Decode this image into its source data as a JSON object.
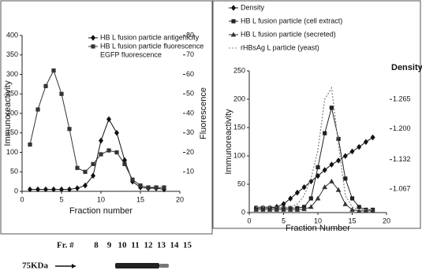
{
  "chart_data": [
    {
      "type": "line",
      "x_label": "Fraction number",
      "y_label": "Immunoreactivity",
      "y2_label": "Fluorescence",
      "xlim": [
        0,
        20
      ],
      "xticks": [
        0,
        5,
        10,
        15,
        20
      ],
      "ylim": [
        0,
        400
      ],
      "yticks": [
        0,
        50,
        100,
        150,
        200,
        250,
        300,
        350,
        400
      ],
      "y2lim": [
        0,
        80
      ],
      "y2ticks": [
        10,
        20,
        30,
        40,
        50,
        60,
        70,
        80
      ],
      "legend_note": "EGFP fluorescence",
      "series": [
        {
          "name": "HB L fusion particle antigenicity",
          "color": "#111111",
          "marker": "diamond",
          "dash": "none",
          "x": [
            1,
            2,
            3,
            4,
            5,
            6,
            7,
            8,
            9,
            10,
            11,
            12,
            13,
            14,
            15,
            16,
            17,
            18
          ],
          "values": [
            5,
            5,
            5,
            5,
            5,
            5,
            8,
            15,
            40,
            130,
            185,
            150,
            80,
            25,
            10,
            8,
            8,
            5
          ]
        },
        {
          "name": "HB L fusion particle fluorescence",
          "color": "#333333",
          "marker": "square",
          "dash": "none",
          "axis": "y2",
          "x": [
            1,
            2,
            3,
            4,
            5,
            6,
            7,
            8,
            9,
            10,
            11,
            12,
            13,
            14,
            15,
            16,
            17,
            18
          ],
          "values": [
            24,
            42,
            54,
            62,
            50,
            32,
            12,
            10,
            14,
            19,
            21,
            20,
            14,
            6,
            3,
            2,
            2,
            2
          ]
        }
      ]
    },
    {
      "type": "line",
      "x_label": "Fraction Number",
      "y_label": "Immunoreactivity",
      "y2_label": "Density",
      "xlim": [
        0,
        20
      ],
      "xticks": [
        0,
        5,
        10,
        15,
        20
      ],
      "ylim": [
        0,
        250
      ],
      "yticks": [
        0,
        50,
        100,
        150,
        200,
        250
      ],
      "y2lim": [
        1.015,
        1.328
      ],
      "y2ticks": [
        {
          "value": 1.067,
          "label": "1.067"
        },
        {
          "value": 1.132,
          "label": "1.132"
        },
        {
          "value": 1.2,
          "label": "1.200"
        },
        {
          "value": 1.265,
          "label": "1.265"
        }
      ],
      "series": [
        {
          "name": "Density",
          "color": "#111111",
          "marker": "diamond",
          "dash": "none",
          "axis": "y2",
          "x": [
            1,
            2,
            3,
            4,
            5,
            6,
            7,
            8,
            9,
            10,
            11,
            12,
            13,
            14,
            15,
            16,
            17,
            18
          ],
          "values": [
            1.025,
            1.025,
            1.025,
            1.0275,
            1.034,
            1.046,
            1.059,
            1.071,
            1.084,
            1.096,
            1.109,
            1.121,
            1.13,
            1.14,
            1.15,
            1.16,
            1.171,
            1.181
          ]
        },
        {
          "name": "HB L fusion particle  (cell extract)",
          "color": "#222222",
          "marker": "square",
          "dash": "none",
          "x": [
            1,
            2,
            3,
            4,
            5,
            6,
            7,
            8,
            9,
            10,
            11,
            12,
            13,
            14,
            15,
            16,
            17,
            18
          ],
          "values": [
            8,
            8,
            8,
            8,
            8,
            8,
            8,
            10,
            25,
            80,
            140,
            185,
            130,
            60,
            25,
            10,
            5,
            5
          ]
        },
        {
          "name": "HB L fusion particle (secreted)",
          "color": "#333333",
          "marker": "triangle",
          "dash": "none",
          "x": [
            1,
            2,
            3,
            4,
            5,
            6,
            7,
            8,
            9,
            10,
            11,
            12,
            13,
            14,
            15,
            16,
            17,
            18
          ],
          "values": [
            5,
            5,
            5,
            5,
            5,
            5,
            5,
            6,
            10,
            25,
            45,
            55,
            40,
            15,
            5,
            3,
            3,
            3
          ]
        },
        {
          "name": "rHBsAg L particle (yeast)",
          "color": "#888888",
          "marker": "none",
          "dash": "2,2",
          "x": [
            1,
            2,
            3,
            4,
            5,
            6,
            7,
            8,
            9,
            10,
            11,
            12,
            13,
            14,
            15,
            16,
            17,
            18
          ],
          "values": [
            10,
            10,
            10,
            10,
            10,
            10,
            15,
            30,
            60,
            110,
            200,
            220,
            120,
            30,
            10,
            5,
            5,
            5
          ]
        }
      ]
    }
  ],
  "gel": {
    "label": "Fr. #",
    "fractions": [
      8,
      9,
      10,
      11,
      12,
      13,
      14,
      15
    ],
    "marker": "75KDa"
  }
}
